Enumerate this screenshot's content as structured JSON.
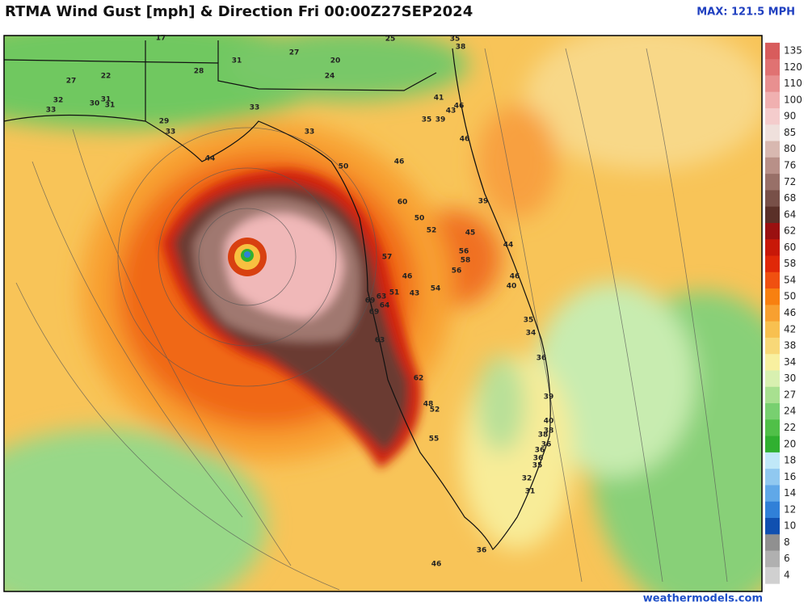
{
  "header": {
    "title": "RTMA Wind Gust [mph] & Direction Fri 00:00Z27SEP2024",
    "max_label": "MAX: 121.5 MPH"
  },
  "stations": [
    17,
    25,
    35,
    38,
    27,
    31,
    20,
    27,
    22,
    28,
    24,
    32,
    31,
    30,
    31,
    33,
    41,
    46,
    43,
    33,
    29,
    35,
    39,
    33,
    33,
    46,
    44,
    50,
    46,
    60,
    39,
    50,
    52,
    45,
    44,
    56,
    58,
    57,
    56,
    46,
    46,
    40,
    51,
    43,
    54,
    63,
    69,
    64,
    69,
    35,
    34,
    63,
    36,
    62,
    39,
    48,
    52,
    40,
    38,
    38,
    55,
    36,
    36,
    36,
    35,
    32,
    31,
    36,
    46
  ],
  "colorbar": {
    "labels": [
      135,
      120,
      110,
      100,
      90,
      85,
      80,
      76,
      72,
      68,
      64,
      62,
      60,
      58,
      54,
      50,
      46,
      42,
      38,
      34,
      30,
      27,
      24,
      22,
      20,
      18,
      16,
      14,
      12,
      10,
      8,
      6,
      4
    ],
    "colors": [
      "#d85c5c",
      "#e07272",
      "#e89090",
      "#f0b0b0",
      "#f4cccc",
      "#efe0dc",
      "#d8b8b0",
      "#b89088",
      "#987068",
      "#785048",
      "#5a3028",
      "#9a1010",
      "#c81808",
      "#e02808",
      "#f05010",
      "#f88010",
      "#f8a030",
      "#f8c050",
      "#f8d878",
      "#f8f0a0",
      "#d8f0b0",
      "#a8e090",
      "#78d070",
      "#50c048",
      "#30b030",
      "#c0e8f8",
      "#90c8f0",
      "#60a8e8",
      "#3080d8",
      "#1050b0",
      "#909090",
      "#b0b0b0",
      "#d0d0d0"
    ]
  },
  "footer": {
    "credit": "weathermodels.com"
  }
}
